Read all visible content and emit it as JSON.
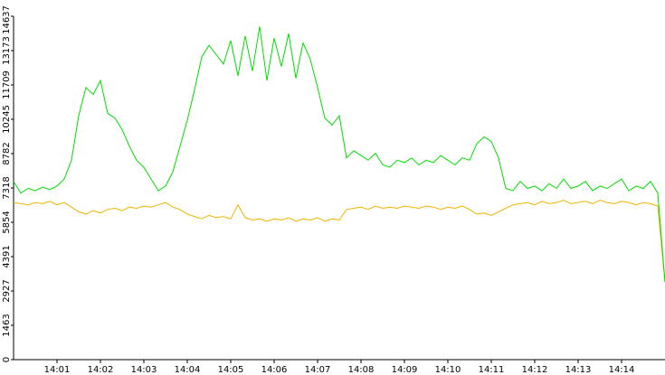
{
  "chart_data": {
    "type": "line",
    "x": [
      0,
      10,
      20,
      30,
      40,
      50,
      60,
      70,
      80,
      90,
      100,
      110,
      120,
      130,
      140,
      150,
      160,
      170,
      180,
      190,
      200,
      210,
      220,
      230,
      240,
      250,
      260,
      270,
      280,
      290,
      300,
      310,
      320,
      330,
      340,
      350,
      360,
      370,
      380,
      390,
      400,
      410,
      420,
      430,
      440,
      450,
      460,
      470,
      480,
      490,
      500,
      510,
      520,
      530,
      540,
      550,
      560,
      570,
      580,
      590,
      600,
      610,
      620,
      630,
      640,
      650,
      660,
      670,
      680,
      690,
      700,
      710,
      720,
      730,
      740,
      750,
      760,
      770,
      780,
      790,
      800,
      810,
      820,
      830,
      840,
      850,
      860,
      870,
      880,
      890,
      900
    ],
    "series": [
      {
        "color": "#00dd00",
        "values": [
          7600,
          7100,
          7300,
          7200,
          7350,
          7250,
          7400,
          7700,
          8500,
          10400,
          11600,
          11300,
          11900,
          10500,
          10300,
          9800,
          9100,
          8500,
          8200,
          7700,
          7200,
          7400,
          8000,
          9100,
          10200,
          11500,
          12900,
          13400,
          13000,
          12600,
          13600,
          12100,
          13800,
          12300,
          14200,
          11900,
          13700,
          12500,
          13900,
          12000,
          13500,
          12800,
          11600,
          10300,
          10000,
          10400,
          8600,
          8900,
          8700,
          8500,
          8800,
          8300,
          8200,
          8500,
          8400,
          8600,
          8300,
          8500,
          8400,
          8700,
          8500,
          8300,
          8600,
          8500,
          9200,
          9500,
          9300,
          8600,
          7300,
          7200,
          7600,
          7300,
          7400,
          7200,
          7500,
          7300,
          7700,
          7300,
          7400,
          7600,
          7200,
          7400,
          7300,
          7500,
          7700,
          7200,
          7400,
          7300,
          7600,
          7100,
          3300
        ]
      },
      {
        "color": "#f0b400",
        "values": [
          6700,
          6650,
          6600,
          6700,
          6650,
          6750,
          6600,
          6700,
          6500,
          6300,
          6200,
          6350,
          6250,
          6400,
          6450,
          6350,
          6500,
          6450,
          6550,
          6500,
          6600,
          6700,
          6500,
          6400,
          6200,
          6100,
          6000,
          6150,
          6050,
          6100,
          6000,
          6600,
          6050,
          5950,
          6000,
          5900,
          6000,
          5950,
          6050,
          5900,
          6000,
          5950,
          6050,
          5900,
          6000,
          5950,
          6400,
          6450,
          6500,
          6400,
          6550,
          6450,
          6500,
          6450,
          6550,
          6500,
          6450,
          6550,
          6500,
          6400,
          6500,
          6450,
          6550,
          6400,
          6200,
          6250,
          6150,
          6300,
          6450,
          6600,
          6650,
          6700,
          6600,
          6750,
          6650,
          6700,
          6800,
          6650,
          6700,
          6750,
          6650,
          6800,
          6700,
          6650,
          6750,
          6700,
          6600,
          6700,
          6650,
          6550,
          3300
        ]
      }
    ],
    "xlim": [
      0,
      900
    ],
    "xticks": [
      {
        "value": 60,
        "label": "14:01"
      },
      {
        "value": 120,
        "label": "14:02"
      },
      {
        "value": 180,
        "label": "14:03"
      },
      {
        "value": 240,
        "label": "14:04"
      },
      {
        "value": 300,
        "label": "14:05"
      },
      {
        "value": 360,
        "label": "14:06"
      },
      {
        "value": 420,
        "label": "14:07"
      },
      {
        "value": 480,
        "label": "14:08"
      },
      {
        "value": 540,
        "label": "14:09"
      },
      {
        "value": 600,
        "label": "14:10"
      },
      {
        "value": 660,
        "label": "14:11"
      },
      {
        "value": 720,
        "label": "14:12"
      },
      {
        "value": 780,
        "label": "14:13"
      },
      {
        "value": 840,
        "label": "14:14"
      }
    ],
    "ylim": [
      0,
      14637
    ],
    "yticks": [
      0,
      1463,
      2927,
      4391,
      5854,
      7318,
      8782,
      10245,
      11709,
      13173,
      14637
    ]
  }
}
